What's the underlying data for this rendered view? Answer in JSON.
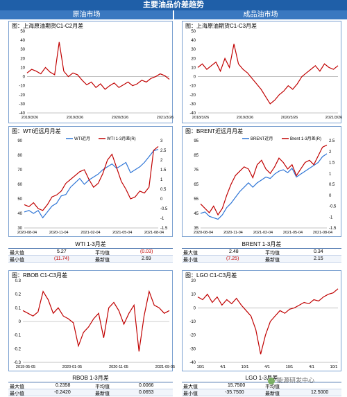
{
  "banner": "主要油品价差趋势",
  "headers": {
    "left": "原油市场",
    "right": "成品油市场"
  },
  "colors": {
    "banner": "#1f5fa8",
    "series_red": "#c00000",
    "series_blue": "#2e75d6",
    "negative": "#c00000"
  },
  "charts": [
    {
      "title": "图：上海原油期货C1-C2月差",
      "chart_data": {
        "type": "line",
        "x_ticks": [
          "2018/3/26",
          "2019/3/26",
          "2020/3/26",
          "2021/3/26"
        ],
        "ylim": [
          -40,
          50
        ],
        "y_ticks": [
          50,
          40,
          30,
          20,
          10,
          0,
          -10,
          -20,
          -30,
          -40
        ],
        "series": [
          {
            "values": [
              4,
              8,
              6,
              3,
              10,
              5,
              2,
              38,
              6,
              0,
              4,
              2,
              -4,
              -9,
              -6,
              -12,
              -8,
              -14,
              -10,
              -7,
              -12,
              -9,
              -6,
              -10,
              -8,
              -4,
              -6,
              -2,
              0,
              3,
              1,
              -3
            ]
          }
        ]
      }
    },
    {
      "title": "图：上海原油期货C1-C3月差",
      "chart_data": {
        "type": "line",
        "x_ticks": [
          "2018/3/26",
          "2019/3/26",
          "2020/3/26",
          "2021/3/26"
        ],
        "ylim": [
          -40,
          50
        ],
        "y_ticks": [
          50,
          40,
          30,
          20,
          10,
          0,
          -10,
          -20,
          -30,
          -40
        ],
        "series": [
          {
            "values": [
              10,
              14,
              8,
              12,
              16,
              6,
              20,
              10,
              36,
              14,
              8,
              4,
              -2,
              -8,
              -14,
              -22,
              -30,
              -26,
              -20,
              -16,
              -10,
              -14,
              -8,
              0,
              4,
              8,
              12,
              6,
              14,
              10,
              8,
              12
            ]
          }
        ]
      }
    },
    {
      "title": "图：WTI近远月月差",
      "chart_data": {
        "type": "line",
        "legend": [
          "WTI近月",
          "WTI 1-3月差(R)"
        ],
        "x_ticks": [
          "2020-08-04",
          "2020-11-04",
          "2021-02-04",
          "2021-05-04",
          "2021-08-04"
        ],
        "ylim": [
          30,
          90
        ],
        "y_ticks": [
          90,
          80,
          70,
          60,
          50,
          40,
          30
        ],
        "y2lim": [
          -1.5,
          3
        ],
        "y2_ticks": [
          3,
          2.5,
          2,
          1.5,
          1,
          0.5,
          0,
          -0.5,
          -1,
          -1.5
        ],
        "series": [
          {
            "name": "WTI近月",
            "axis": "left",
            "values": [
              41,
              42,
              40,
              42,
              37,
              41,
              45,
              47,
              52,
              53,
              58,
              61,
              64,
              60,
              63,
              65,
              67,
              70,
              72,
              74,
              71,
              73,
              75,
              68,
              70,
              72,
              75,
              79,
              83,
              84
            ]
          },
          {
            "name": "WTI 1-3月差(R)",
            "axis": "right",
            "values": [
              -0.3,
              -0.4,
              -0.2,
              -0.5,
              -0.6,
              -0.3,
              0.1,
              0.2,
              0.4,
              0.8,
              1.0,
              1.2,
              1.4,
              1.5,
              1.0,
              0.6,
              0.8,
              1.3,
              2.0,
              2.3,
              1.6,
              0.9,
              0.5,
              0.0,
              0.1,
              0.4,
              0.3,
              0.6,
              2.5,
              2.7
            ]
          }
        ]
      }
    },
    {
      "title": "图：BRENT近远月月差",
      "chart_data": {
        "type": "line",
        "legend": [
          "BRENT近月",
          "Brent 1-3月差(R)"
        ],
        "x_ticks": [
          "2020-08-04",
          "2020-11-04",
          "2021-02-04",
          "2021-05-04",
          "2021-08-04"
        ],
        "ylim": [
          35,
          95
        ],
        "y_ticks": [
          95,
          85,
          75,
          65,
          55,
          45,
          35
        ],
        "y2lim": [
          -1.5,
          2.5
        ],
        "y2_ticks": [
          2.5,
          2,
          1.5,
          1,
          0.5,
          0,
          -0.5,
          -1,
          -1.5
        ],
        "series": [
          {
            "name": "BRENT近月",
            "axis": "left",
            "values": [
              45,
              46,
              43,
              42,
              41,
              44,
              49,
              52,
              56,
              60,
              63,
              66,
              63,
              66,
              68,
              70,
              69,
              72,
              74,
              75,
              73,
              76,
              70,
              72,
              74,
              76,
              78,
              80,
              84,
              86
            ]
          },
          {
            "name": "Brent 1-3月差(R)",
            "axis": "right",
            "values": [
              -0.4,
              -0.6,
              -0.8,
              -0.5,
              -0.9,
              -0.6,
              0.0,
              0.5,
              0.9,
              1.1,
              1.3,
              1.2,
              0.8,
              1.4,
              1.6,
              1.2,
              1.0,
              1.3,
              1.7,
              1.5,
              1.2,
              1.4,
              0.9,
              1.2,
              1.5,
              1.6,
              1.4,
              1.8,
              2.2,
              2.3
            ]
          }
        ]
      }
    },
    {
      "title": "图：RBOB C1-C3月差",
      "chart_data": {
        "type": "line",
        "x_ticks": [
          "2019-05-05",
          "2020-01-05",
          "2020-11-05",
          "2021-09-05"
        ],
        "ylim": [
          -0.3,
          0.3
        ],
        "y_ticks": [
          0.3,
          0.2,
          0.1,
          0,
          -0.1,
          -0.2,
          -0.3
        ],
        "series": [
          {
            "values": [
              0.08,
              0.06,
              0.04,
              0.07,
              0.22,
              0.16,
              0.06,
              0.1,
              0.04,
              0.02,
              -0.01,
              -0.18,
              -0.08,
              -0.04,
              0.02,
              0.06,
              -0.12,
              0.1,
              0.14,
              0.08,
              -0.02,
              0.06,
              0.12,
              -0.22,
              0.04,
              0.22,
              0.12,
              0.1,
              0.06,
              0.08
            ]
          }
        ]
      }
    },
    {
      "title": "图：LGO C1-C3月差",
      "chart_data": {
        "type": "line",
        "x_ticks": [
          "10/1",
          "4/1",
          "10/1",
          "4/1",
          "10/1",
          "4/1",
          "10/1"
        ],
        "ylim": [
          -40,
          20
        ],
        "y_ticks": [
          20,
          10,
          0,
          -10,
          -20,
          -30,
          -40
        ],
        "series": [
          {
            "values": [
              8,
              6,
              10,
              4,
              8,
              2,
              6,
              3,
              7,
              2,
              -2,
              -6,
              -16,
              -34,
              -20,
              -10,
              -6,
              -2,
              -4,
              -1,
              0,
              2,
              4,
              3,
              6,
              5,
              8,
              10,
              11,
              14
            ]
          }
        ]
      }
    }
  ],
  "stats": [
    {
      "title": "WTI 1-3月差",
      "rows": [
        {
          "k1": "最大值",
          "v1": "5.27",
          "k2": "平均值",
          "v2": "(0.03)"
        },
        {
          "k1": "最小值",
          "v1": "(11.74)",
          "k2": "最新值",
          "v2": "2.69"
        }
      ]
    },
    {
      "title": "BRENT 1-3月差",
      "rows": [
        {
          "k1": "最大值",
          "v1": "2.48",
          "k2": "平均值",
          "v2": "0.34"
        },
        {
          "k1": "最小值",
          "v1": "(7.25)",
          "k2": "最新值",
          "v2": "2.15"
        }
      ]
    },
    {
      "title": "RBOB 1-3月差",
      "rows": [
        {
          "k1": "最大值",
          "v1": "0.2358",
          "k2": "平均值",
          "v2": "0.0066"
        },
        {
          "k1": "最小值",
          "v1": "-0.2420",
          "k2": "最新值",
          "v2": "0.0653"
        }
      ]
    },
    {
      "title": "LGO 1-3月差",
      "rows": [
        {
          "k1": "最大值",
          "v1": "15.7500",
          "k2": "平均值",
          "v2": ""
        },
        {
          "k1": "最小值",
          "v1": "-35.7500",
          "k2": "最新值",
          "v2": "12.5000"
        }
      ]
    }
  ],
  "watermark": "能源研发中心"
}
